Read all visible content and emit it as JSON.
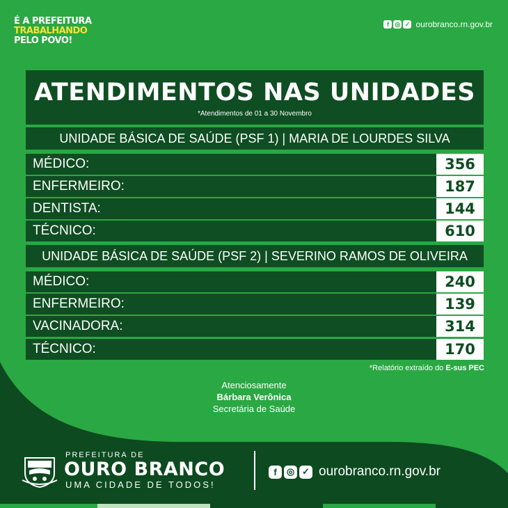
{
  "header": {
    "slogan_line1": "É A PREFEITURA",
    "slogan_line2": "TRABALHANDO",
    "slogan_line3": "PELO POVO!",
    "website": "ourobranco.rn.gov.br",
    "social_icons": [
      "facebook-icon",
      "instagram-icon",
      "twitter-icon"
    ]
  },
  "title": "ATENDIMENTOS NAS UNIDADES",
  "subtitle": "*Atendimentos de 01 a 30 Novembro",
  "units": [
    {
      "name": "UNIDADE BÁSICA DE SAÚDE (PSF 1) | MARIA DE LOURDES SILVA",
      "rows": [
        {
          "label": "MÉDICO:",
          "value": "356"
        },
        {
          "label": "ENFERMEIRO:",
          "value": "187"
        },
        {
          "label": "DENTISTA:",
          "value": "144"
        },
        {
          "label": "TÉCNICO:",
          "value": "610"
        }
      ]
    },
    {
      "name": "UNIDADE BÁSICA DE SAÚDE (PSF 2) | SEVERINO RAMOS DE OLIVEIRA",
      "rows": [
        {
          "label": "MÉDICO:",
          "value": "240"
        },
        {
          "label": "ENFERMEIRO:",
          "value": "139"
        },
        {
          "label": "VACINADORA:",
          "value": "314"
        },
        {
          "label": "TÉCNICO:",
          "value": "170"
        }
      ]
    }
  ],
  "report_note_prefix": "*Relatório extraído do ",
  "report_note_source": "E-sus PEC",
  "signature": {
    "greeting": "Atenciosamente",
    "name": "Bárbara Verônica",
    "role": "Secretária de Saúde"
  },
  "footer": {
    "prefeitura_label": "PREFEITURA DE",
    "city": "OURO BRANCO",
    "motto": "UMA CIDADE DE TODOS!",
    "website": "ourobranco.rn.gov.br"
  },
  "colors": {
    "background": "#2aa843",
    "dark_green": "#0f4d22",
    "footer_green": "#0d4a20",
    "slogan_yellow": "#f5e23a"
  }
}
